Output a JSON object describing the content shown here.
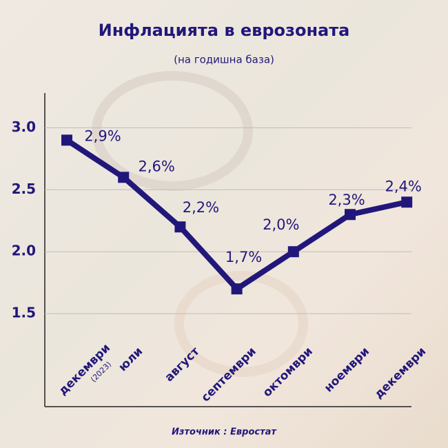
{
  "chart_data": {
    "type": "line",
    "title": "Инфлацията в еврозоната",
    "subtitle": "(на годишна база)",
    "categories": [
      "декември",
      "юли",
      "август",
      "септември",
      "октомври",
      "ноември",
      "декември"
    ],
    "category_note": "(2023)",
    "series": [
      {
        "name": "Инфлация",
        "color": "#21177a",
        "values": [
          2.9,
          2.6,
          2.2,
          1.7,
          2.0,
          2.3,
          2.4
        ],
        "value_labels": [
          "2,9%",
          "2,6%",
          "2,2%",
          "1,7%",
          "2,0%",
          "2,3%",
          "2,4%"
        ]
      }
    ],
    "ylim": [
      0.75,
      3.28
    ],
    "yticks": [
      1.5,
      {
        "value": 2,
        "label": "2.0"
      },
      2.5,
      {
        "value": 3,
        "label": "3.0"
      }
    ],
    "grid": true,
    "source": "Източник : Евростат"
  }
}
